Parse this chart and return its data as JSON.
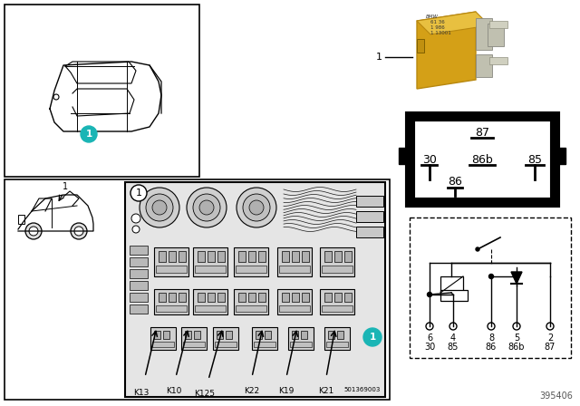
{
  "bg_color": "#ffffff",
  "relay_yellow": "#d4a017",
  "relay_yellow_dark": "#b8880f",
  "relay_pin_metal": "#a0a090",
  "circle_color": "#1ab5b5",
  "circle_text": "#ffffff",
  "fuse_gray": "#c8c8c8",
  "fuse_dark": "#a8a8a8",
  "fuse_bg": "#e0e0e0",
  "diagram_num": "395406",
  "part_num": "501369003",
  "relay_labels": [
    "K13",
    "K10",
    "K125",
    "K22",
    "K19",
    "K21"
  ],
  "pin_top_row": [
    "6",
    "4",
    "8",
    "5",
    "2"
  ],
  "pin_bot_row": [
    "30",
    "85",
    "86",
    "86b",
    "87"
  ]
}
